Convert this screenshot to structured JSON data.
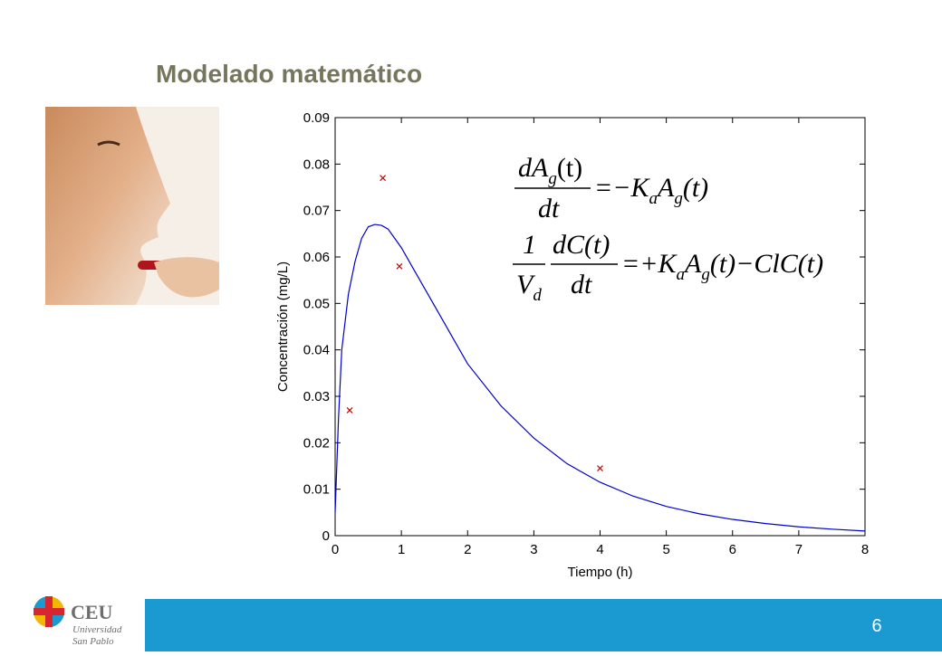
{
  "slide": {
    "title": "Modelado matemático",
    "page_number": "6",
    "logo": {
      "brand": "CEU",
      "line1": "Universidad",
      "line2": "San Pablo"
    }
  },
  "equations": [
    {
      "num": [
        "dA",
        "g",
        "(t)"
      ],
      "den": [
        "dt"
      ],
      "rhs": [
        "=−K",
        "a",
        "A",
        "g",
        "(t)"
      ]
    },
    {
      "coef_num": "1",
      "coef_den": [
        "V",
        "d"
      ],
      "num": [
        "dC(t)"
      ],
      "den": [
        "dt"
      ],
      "rhs": [
        "=+K",
        "a",
        "A",
        "g",
        "(t)−ClC(t)"
      ]
    }
  ],
  "chart_data": {
    "type": "line",
    "xlabel": "Tiempo (h)",
    "ylabel": "Concentración (mg/L)",
    "xlim": [
      0,
      8
    ],
    "ylim": [
      0,
      0.09
    ],
    "xticks": [
      0,
      1,
      2,
      3,
      4,
      5,
      6,
      7,
      8
    ],
    "yticks": [
      0,
      0.01,
      0.02,
      0.03,
      0.04,
      0.05,
      0.06,
      0.07,
      0.08,
      0.09
    ],
    "series": [
      {
        "style": "line",
        "color": "#0000cc",
        "x": [
          0,
          0.05,
          0.1,
          0.2,
          0.3,
          0.4,
          0.5,
          0.6,
          0.7,
          0.8,
          1.0,
          1.2,
          1.4,
          1.6,
          1.8,
          2,
          2.5,
          3,
          3.5,
          4,
          4.5,
          5,
          5.5,
          6,
          6.5,
          7,
          7.5,
          8
        ],
        "values": [
          0.005,
          0.025,
          0.04,
          0.052,
          0.059,
          0.064,
          0.0665,
          0.067,
          0.0668,
          0.066,
          0.062,
          0.057,
          0.052,
          0.047,
          0.042,
          0.037,
          0.028,
          0.021,
          0.0155,
          0.0115,
          0.0085,
          0.0063,
          0.0047,
          0.0035,
          0.0026,
          0.0019,
          0.0014,
          0.001
        ]
      },
      {
        "style": "marker",
        "color": "#cc0000",
        "x": [
          0.22,
          0.72,
          0.97,
          4
        ],
        "values": [
          0.027,
          0.077,
          0.058,
          0.0145
        ]
      }
    ]
  }
}
